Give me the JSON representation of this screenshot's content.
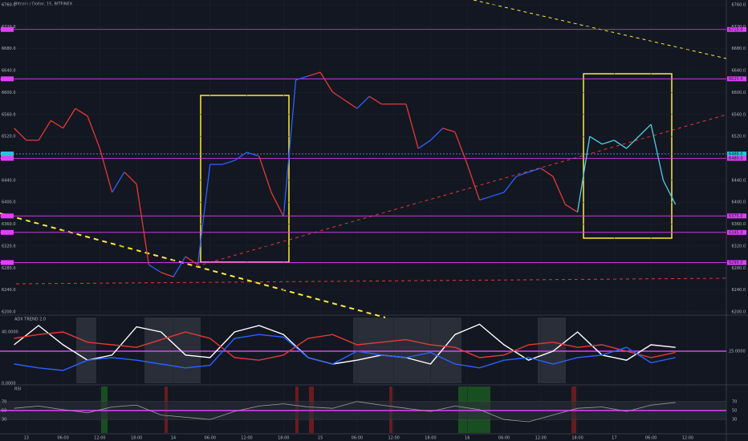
{
  "chart_data": {
    "type": "line",
    "title": "Bitcoin / Dollar, 15, BITFINEX",
    "x": [
      -2,
      0,
      2,
      4,
      6,
      8,
      10,
      12,
      14,
      16,
      18,
      20,
      22,
      24,
      26,
      28,
      30,
      32,
      34,
      36,
      38,
      40,
      42,
      44,
      46,
      48,
      50,
      52,
      54,
      56,
      58,
      60,
      62,
      64,
      66,
      68,
      70,
      72,
      74,
      76,
      78,
      80,
      82,
      84,
      86,
      88,
      90,
      92,
      94,
      96,
      98,
      100,
      102,
      104,
      106
    ],
    "values": [
      6535,
      6513,
      6513,
      6549,
      6535,
      6571,
      6557,
      6498,
      6418,
      6455,
      6433,
      6286,
      6272,
      6264,
      6301,
      6286,
      6469,
      6469,
      6476,
      6491,
      6484,
      6418,
      6374,
      6623,
      6630,
      6637,
      6601,
      6586,
      6571,
      6593,
      6579,
      6579,
      6579,
      6498,
      6513,
      6535,
      6528,
      6469,
      6404,
      6411,
      6418,
      6447,
      6455,
      6462,
      6447,
      6396,
      6382,
      6520,
      6506,
      6513,
      6498,
      6520,
      6542,
      6440,
      6396
    ],
    "colors": [
      "#e53935",
      "#e53935",
      "#e53935",
      "#e53935",
      "#e53935",
      "#e53935",
      "#e53935",
      "#e53935",
      "#e53935",
      "#2962ff",
      "#e53935",
      "#e53935",
      "#2962ff",
      "#e53935",
      "#2962ff",
      "#e53935",
      "#2962ff",
      "#2962ff",
      "#2962ff",
      "#2962ff",
      "#2962ff",
      "#e53935",
      "#e53935",
      "#2962ff",
      "#2962ff",
      "#e53935",
      "#e53935",
      "#e53935",
      "#e53935",
      "#2962ff",
      "#e53935",
      "#e53935",
      "#e53935",
      "#e53935",
      "#2962ff",
      "#2962ff",
      "#e53935",
      "#e53935",
      "#e53935",
      "#2962ff",
      "#2962ff",
      "#2962ff",
      "#2962ff",
      "#2962ff",
      "#e53935",
      "#e53935",
      "#e53935",
      "#4dd0e1",
      "#4dd0e1",
      "#4dd0e1",
      "#4dd0e1",
      "#4dd0e1",
      "#4dd0e1",
      "#4dd0e1",
      "#4dd0e1"
    ],
    "xlim": [
      -4.3,
      114.3
    ],
    "xticks": [
      {
        "value": 0,
        "label": "13"
      },
      {
        "value": 6,
        "label": "06:00"
      },
      {
        "value": 12,
        "label": "12:00"
      },
      {
        "value": 18,
        "label": "18:00"
      },
      {
        "value": 24,
        "label": "14"
      },
      {
        "value": 30,
        "label": "06:00"
      },
      {
        "value": 36,
        "label": "12:00"
      },
      {
        "value": 42,
        "label": "18:00"
      },
      {
        "value": 48,
        "label": "15"
      },
      {
        "value": 54,
        "label": "06:00"
      },
      {
        "value": 60,
        "label": "12:00"
      },
      {
        "value": 66,
        "label": "18:00"
      },
      {
        "value": 72,
        "label": "16"
      },
      {
        "value": 78,
        "label": "06:00"
      },
      {
        "value": 84,
        "label": "12:00"
      },
      {
        "value": 90,
        "label": "18:00"
      },
      {
        "value": 96,
        "label": "17"
      },
      {
        "value": 102,
        "label": "06:00"
      },
      {
        "value": 108,
        "label": "12:00"
      }
    ],
    "ylim": [
      6200,
      6760
    ],
    "yticks": [
      {
        "value": 6760,
        "label": "6760.0"
      },
      {
        "value": 6720,
        "label": "6720.0"
      },
      {
        "value": 6680,
        "label": "6680.0"
      },
      {
        "value": 6640,
        "label": "6640.0"
      },
      {
        "value": 6600,
        "label": "6600.0"
      },
      {
        "value": 6560,
        "label": "6560.0"
      },
      {
        "value": 6520,
        "label": "6520.0"
      },
      {
        "value": 6440,
        "label": "6440.0"
      },
      {
        "value": 6400,
        "label": "6400.0"
      },
      {
        "value": 6360,
        "label": "6360.0"
      },
      {
        "value": 6320,
        "label": "6320.0"
      },
      {
        "value": 6280,
        "label": "6280.0"
      },
      {
        "value": 6240,
        "label": "6240.0"
      },
      {
        "value": 6200,
        "label": "6200.0"
      }
    ],
    "levels": [
      {
        "value": 6715,
        "label": "6715.0",
        "color": "#e040fb"
      },
      {
        "value": 6625,
        "label": "6625.0",
        "color": "#e040fb"
      },
      {
        "value": 6488,
        "label": "6488.0",
        "color": "#26c6da"
      },
      {
        "value": 6480,
        "label": "6480.0",
        "color": "#e040fb"
      },
      {
        "value": 6375,
        "label": "6375.0",
        "color": "#e040fb"
      },
      {
        "value": 6345,
        "label": "6345.0",
        "color": "#e040fb"
      },
      {
        "value": 6290,
        "label": "6290.0",
        "color": "#e040fb"
      }
    ],
    "adx": {
      "title": "ADX TREND 2.0",
      "x": [
        -2,
        2,
        6,
        10,
        14,
        18,
        22,
        26,
        30,
        34,
        38,
        42,
        46,
        50,
        54,
        58,
        62,
        66,
        70,
        74,
        78,
        82,
        86,
        90,
        94,
        98,
        102,
        106
      ],
      "ylim": [
        0,
        50
      ],
      "yticks": [
        {
          "value": 0,
          "label": "0.0000"
        },
        {
          "value": 40,
          "label": "40.0000"
        }
      ],
      "level": {
        "value": 25,
        "label": "25.0000"
      },
      "series": [
        {
          "color": "#ffffff",
          "values": [
            30,
            45,
            30,
            18,
            22,
            44,
            40,
            22,
            20,
            40,
            45,
            38,
            20,
            15,
            18,
            22,
            20,
            15,
            38,
            46,
            30,
            18,
            25,
            40,
            22,
            18,
            30,
            28
          ]
        },
        {
          "color": "#e53935",
          "values": [
            35,
            38,
            40,
            32,
            30,
            28,
            34,
            40,
            35,
            20,
            18,
            22,
            35,
            38,
            30,
            32,
            34,
            30,
            28,
            20,
            22,
            30,
            32,
            28,
            30,
            25,
            20,
            24
          ]
        },
        {
          "color": "#2962ff",
          "values": [
            15,
            12,
            10,
            18,
            20,
            18,
            15,
            12,
            14,
            35,
            38,
            36,
            20,
            15,
            25,
            22,
            20,
            24,
            15,
            12,
            18,
            20,
            15,
            20,
            22,
            28,
            16,
            20
          ]
        }
      ]
    },
    "rsi": {
      "title": "RSI",
      "x": [
        -2,
        2,
        6,
        10,
        14,
        18,
        22,
        26,
        30,
        34,
        38,
        42,
        46,
        50,
        54,
        58,
        62,
        66,
        70,
        74,
        78,
        82,
        86,
        90,
        94,
        98,
        102,
        106
      ],
      "ylim": [
        0,
        100
      ],
      "yticks": [
        30,
        50,
        70
      ],
      "color": "#9e9e9e",
      "values": [
        55,
        60,
        52,
        45,
        58,
        62,
        40,
        35,
        30,
        48,
        60,
        65,
        58,
        55,
        70,
        62,
        55,
        48,
        60,
        52,
        30,
        25,
        40,
        55,
        58,
        48,
        62,
        68
      ]
    }
  }
}
